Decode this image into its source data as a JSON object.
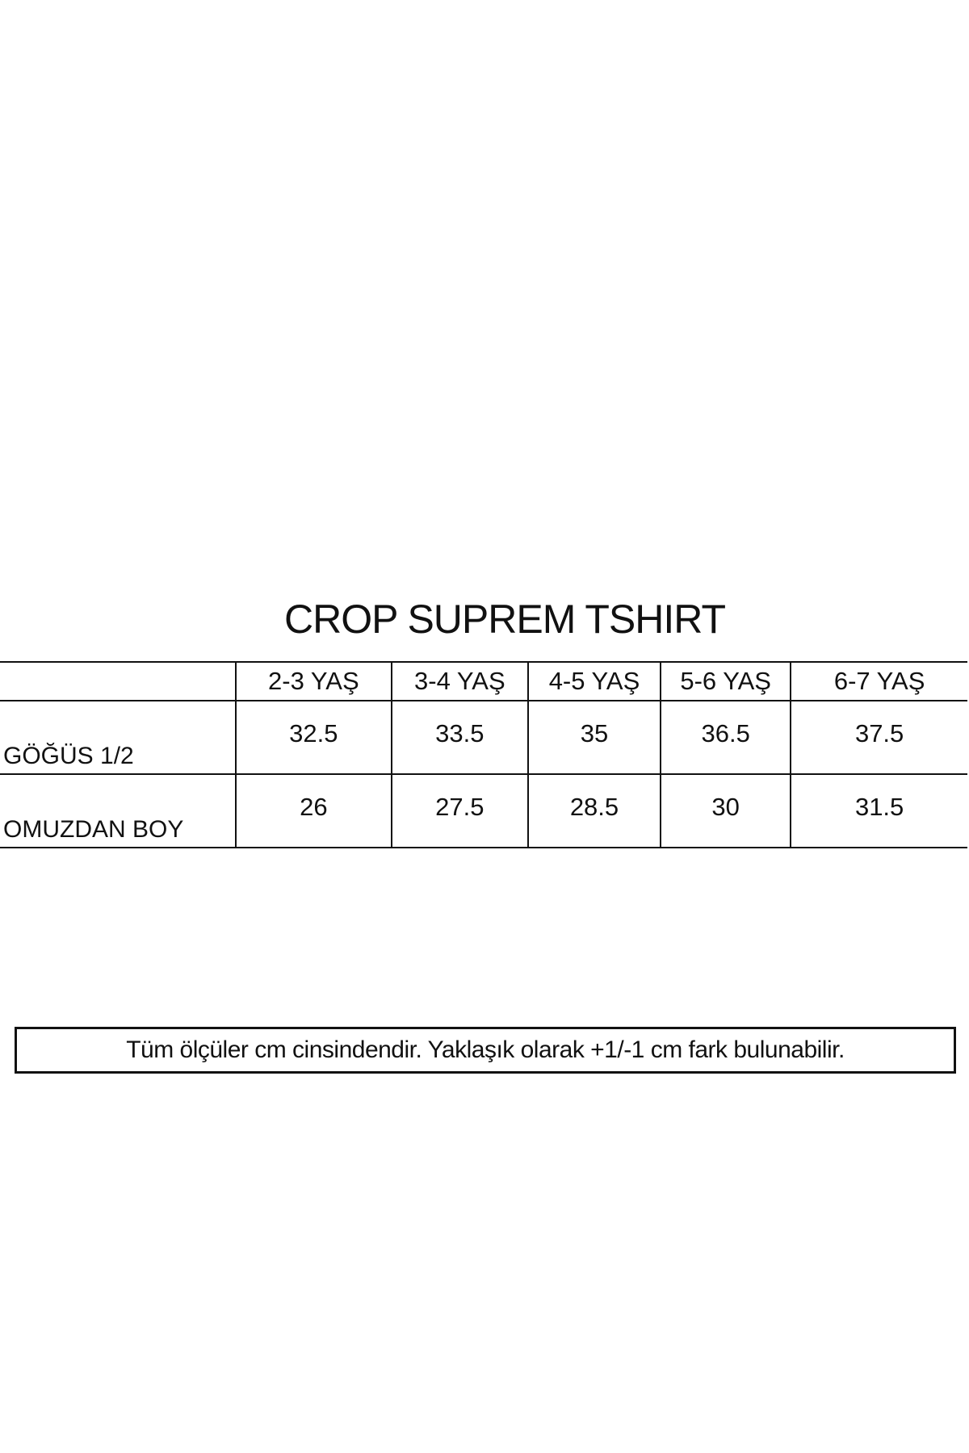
{
  "title": "CROP SUPREM TSHIRT",
  "table": {
    "columns": [
      "",
      "2-3 YAŞ",
      "3-4 YAŞ",
      "4-5 YAŞ",
      "5-6 YAŞ",
      "6-7 YAŞ"
    ],
    "rows": [
      {
        "label": "GÖĞÜS 1/2",
        "values": [
          "32.5",
          "33.5",
          "35",
          "36.5",
          "37.5"
        ]
      },
      {
        "label": "OMUZDAN BOY",
        "values": [
          "26",
          "27.5",
          "28.5",
          "30",
          "31.5"
        ]
      }
    ]
  },
  "note": "Tüm ölçüler cm cinsindendir. Yaklaşık olarak +1/-1 cm fark bulunabilir."
}
